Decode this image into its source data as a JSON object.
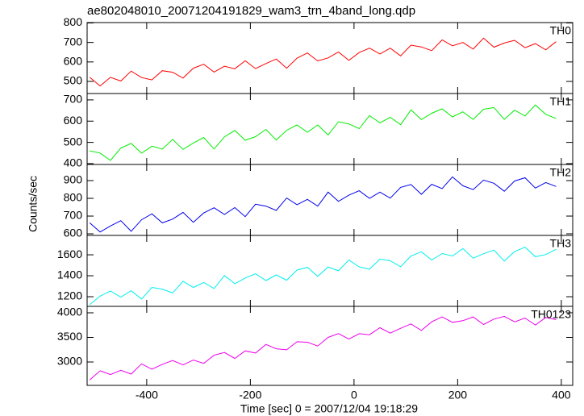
{
  "chart_data": {
    "type": "stacked-line",
    "title": "ae802048010_20071204191829_wam3_trn_4band_long.qdp",
    "xlabel": "Time [sec] 0 = 2007/12/04 19:18:29",
    "ylabel": "Counts/sec",
    "xlim": [
      -515,
      422
    ],
    "xticks": [
      -400,
      -200,
      0,
      200,
      400
    ],
    "x": [
      -510,
      -490,
      -470,
      -450,
      -430,
      -410,
      -390,
      -370,
      -350,
      -330,
      -310,
      -290,
      -270,
      -250,
      -230,
      -210,
      -190,
      -170,
      -150,
      -130,
      -110,
      -90,
      -70,
      -50,
      -30,
      -10,
      10,
      30,
      50,
      70,
      90,
      110,
      130,
      150,
      170,
      190,
      210,
      230,
      250,
      270,
      290,
      310,
      330,
      350,
      370,
      390
    ],
    "panels": [
      {
        "name": "TH0",
        "color": "#ff0000",
        "ylim": [
          438,
          802
        ],
        "yticks": [
          500,
          600,
          700,
          800
        ],
        "values": [
          521,
          477,
          521,
          502,
          553,
          520,
          508,
          555,
          547,
          517,
          568,
          588,
          548,
          578,
          565,
          606,
          566,
          592,
          615,
          568,
          619,
          646,
          605,
          621,
          651,
          608,
          648,
          671,
          641,
          671,
          631,
          686,
          677,
          658,
          713,
          683,
          700,
          666,
          722,
          676,
          697,
          711,
          673,
          694,
          662,
          704
        ]
      },
      {
        "name": "TH1",
        "color": "#00ee00",
        "ylim": [
          396,
          730
        ],
        "yticks": [
          400,
          500,
          600,
          700
        ],
        "values": [
          460,
          450,
          415,
          473,
          495,
          449,
          482,
          468,
          514,
          467,
          497,
          523,
          469,
          526,
          556,
          510,
          527,
          561,
          511,
          557,
          582,
          548,
          582,
          535,
          597,
          587,
          565,
          626,
          592,
          618,
          583,
          653,
          607,
          637,
          658,
          620,
          644,
          608,
          656,
          664,
          608,
          652,
          624,
          676,
          632,
          612
        ]
      },
      {
        "name": "TH2",
        "color": "#0000ee",
        "ylim": [
          591,
          991
        ],
        "yticks": [
          600,
          700,
          800,
          900
        ],
        "values": [
          662,
          610,
          644,
          674,
          614,
          679,
          713,
          662,
          683,
          721,
          665,
          718,
          747,
          709,
          748,
          697,
          767,
          756,
          732,
          802,
          764,
          794,
          756,
          835,
          783,
          818,
          843,
          800,
          835,
          801,
          862,
          878,
          823,
          879,
          855,
          921,
          871,
          849,
          903,
          885,
          840,
          898,
          916,
          858,
          889,
          867
        ]
      },
      {
        "name": "TH3",
        "color": "#00eeee",
        "ylim": [
          1108,
          1785
        ],
        "yticks": [
          1200,
          1400,
          1600
        ],
        "values": [
          1124,
          1206,
          1254,
          1196,
          1257,
          1178,
          1289,
          1273,
          1236,
          1347,
          1289,
          1336,
          1278,
          1403,
          1324,
          1378,
          1419,
          1354,
          1408,
          1357,
          1454,
          1480,
          1394,
          1484,
          1447,
          1550,
          1485,
          1463,
          1559,
          1543,
          1486,
          1589,
          1629,
          1550,
          1612,
          1589,
          1659,
          1568,
          1610,
          1645,
          1540,
          1631,
          1673,
          1582,
          1603,
          1652
        ]
      },
      {
        "name": "TH0123",
        "color": "#ee00ee",
        "ylim": [
          2525,
          4131
        ],
        "yticks": [
          3000,
          3500,
          4000
        ],
        "values": [
          2634,
          2821,
          2744,
          2832,
          2754,
          2963,
          2853,
          2952,
          3029,
          2941,
          3040,
          2973,
          3138,
          3193,
          3072,
          3226,
          3182,
          3358,
          3269,
          3247,
          3412,
          3401,
          3324,
          3500,
          3577,
          3466,
          3576,
          3554,
          3697,
          3587,
          3686,
          3774,
          3641,
          3817,
          3916,
          3806,
          3839,
          3916,
          3762,
          3872,
          3927,
          3817,
          3894,
          3751,
          3905,
          3861
        ]
      }
    ]
  }
}
